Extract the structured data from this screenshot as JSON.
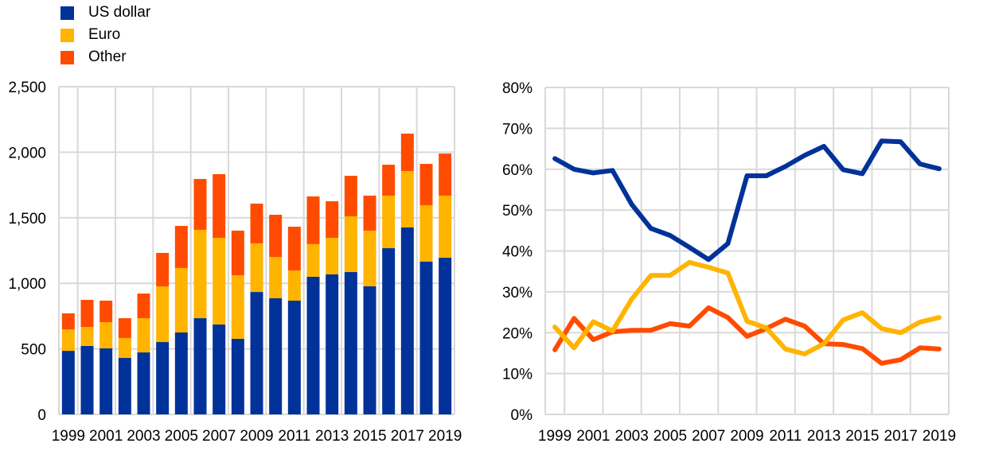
{
  "legend": [
    {
      "name": "US dollar",
      "color": "#003299"
    },
    {
      "name": "Euro",
      "color": "#FFB400"
    },
    {
      "name": "Other",
      "color": "#FF4B00"
    }
  ],
  "chart_data": [
    {
      "type": "bar",
      "stacked": true,
      "title": "",
      "xlabel": "",
      "ylabel": "",
      "ylim": [
        0,
        2500
      ],
      "yticks": [
        0,
        500,
        1000,
        1500,
        2000,
        2500
      ],
      "ytick_labels": [
        "0",
        "500",
        "1,000",
        "1,500",
        "2,000",
        "2,500"
      ],
      "grid": true,
      "legend_position": "top-left",
      "categories": [
        "1999",
        "2000",
        "2001",
        "2002",
        "2003",
        "2004",
        "2005",
        "2006",
        "2007",
        "2008",
        "2009",
        "2010",
        "2011",
        "2012",
        "2013",
        "2014",
        "2015",
        "2016",
        "2017",
        "2018",
        "2019"
      ],
      "xtick_labels": [
        "1999",
        "2001",
        "2003",
        "2005",
        "2007",
        "2009",
        "2011",
        "2013",
        "2015",
        "2017",
        "2019"
      ],
      "series": [
        {
          "name": "US dollar",
          "color": "#003299",
          "values": [
            485,
            522,
            504,
            431,
            473,
            552,
            625,
            734,
            686,
            577,
            934,
            886,
            868,
            1050,
            1068,
            1086,
            977,
            1268,
            1426,
            1165,
            1195
          ]
        },
        {
          "name": "Euro",
          "color": "#FFB400",
          "values": [
            164,
            145,
            200,
            152,
            261,
            425,
            492,
            674,
            661,
            485,
            371,
            315,
            230,
            249,
            279,
            425,
            425,
            401,
            431,
            431,
            474
          ]
        },
        {
          "name": "Other",
          "color": "#FF4B00",
          "values": [
            122,
            207,
            164,
            151,
            188,
            255,
            321,
            388,
            486,
            340,
            303,
            322,
            334,
            364,
            279,
            309,
            267,
            236,
            285,
            315,
            321
          ]
        }
      ]
    },
    {
      "type": "line",
      "title": "",
      "xlabel": "",
      "ylabel": "",
      "ylim": [
        0,
        80
      ],
      "yticks": [
        0,
        10,
        20,
        30,
        40,
        50,
        60,
        70,
        80
      ],
      "ytick_labels": [
        "0%",
        "10%",
        "20%",
        "30%",
        "40%",
        "50%",
        "60%",
        "70%",
        "80%"
      ],
      "grid": true,
      "categories": [
        "1999",
        "2000",
        "2001",
        "2002",
        "2003",
        "2004",
        "2005",
        "2006",
        "2007",
        "2008",
        "2009",
        "2010",
        "2011",
        "2012",
        "2013",
        "2014",
        "2015",
        "2016",
        "2017",
        "2018",
        "2019"
      ],
      "xtick_labels": [
        "1999",
        "2001",
        "2003",
        "2005",
        "2007",
        "2009",
        "2011",
        "2013",
        "2015",
        "2017",
        "2019"
      ],
      "series": [
        {
          "name": "US dollar",
          "color": "#003299",
          "values": [
            62.6,
            60.0,
            59.1,
            59.7,
            51.4,
            45.5,
            43.8,
            40.9,
            37.9,
            41.8,
            58.4,
            58.4,
            60.7,
            63.4,
            65.6,
            59.9,
            58.9,
            66.9,
            66.7,
            61.3,
            60.1
          ]
        },
        {
          "name": "Euro",
          "color": "#FFB400",
          "values": [
            21.4,
            16.3,
            22.7,
            20.4,
            28.2,
            34.0,
            34.0,
            37.2,
            36.0,
            34.6,
            22.8,
            21.2,
            16.0,
            14.8,
            17.3,
            23.1,
            24.9,
            21.0,
            20.0,
            22.6,
            23.7
          ]
        },
        {
          "name": "Other",
          "color": "#FF4B00",
          "values": [
            15.8,
            23.5,
            18.3,
            20.2,
            20.6,
            20.6,
            22.2,
            21.6,
            26.1,
            23.7,
            19.1,
            21.0,
            23.3,
            21.6,
            17.3,
            17.1,
            16.1,
            12.5,
            13.4,
            16.3,
            16.0
          ]
        }
      ]
    }
  ]
}
